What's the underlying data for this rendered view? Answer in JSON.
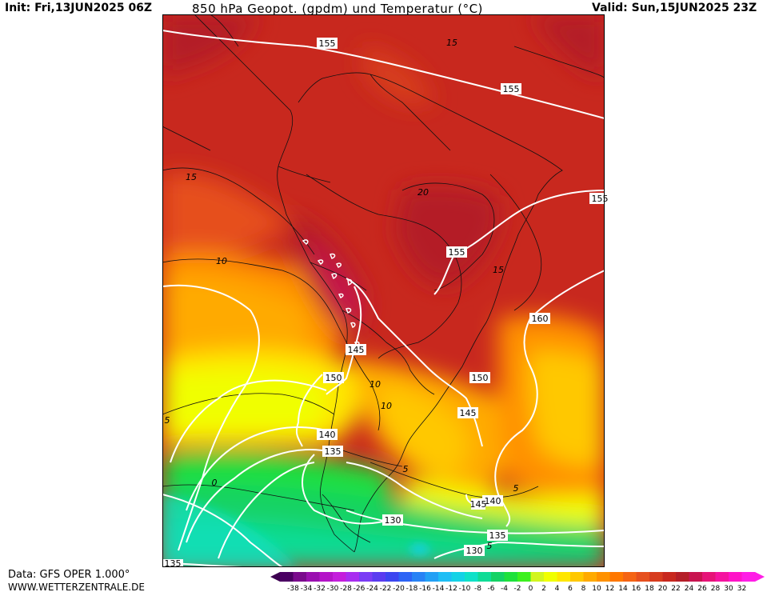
{
  "header": {
    "init": "Init: Fri,13JUN2025 06Z",
    "title": "850 hPa Geopot. (gpdm) und Temperatur (°C)",
    "valid": "Valid: Sun,15JUN2025 23Z"
  },
  "footer": {
    "data_source": "Data: GFS OPER 1.000°",
    "website": "WWW.WETTERZENTRALE.DE"
  },
  "geopotential_labels": [
    "155",
    "155",
    "155",
    "155",
    "160",
    "145",
    "150",
    "150",
    "145",
    "140",
    "135",
    "130",
    "135",
    "130",
    "140",
    "145",
    "135"
  ],
  "temperature_labels": [
    "15",
    "15",
    "15",
    "20",
    "10",
    "10",
    "10",
    "5",
    "5",
    "5",
    "0",
    "5"
  ],
  "legend": {
    "values": [
      "-38",
      "-34",
      "-32",
      "-30",
      "-28",
      "-26",
      "-24",
      "-22",
      "-20",
      "-18",
      "-16",
      "-14",
      "-12",
      "-10",
      "-8",
      "-6",
      "-4",
      "-2",
      "0",
      "2",
      "4",
      "6",
      "8",
      "10",
      "12",
      "14",
      "16",
      "18",
      "20",
      "22",
      "24",
      "26",
      "28",
      "30",
      "32"
    ],
    "colors": [
      "#4b0063",
      "#7a0a8c",
      "#9a0fb0",
      "#b414c8",
      "#c41edc",
      "#a82ef0",
      "#7a3cf5",
      "#5a3cf0",
      "#3c46f0",
      "#2d64f5",
      "#2882f5",
      "#23a0f5",
      "#1ebef5",
      "#14d2e6",
      "#0fe1c8",
      "#0fdc96",
      "#14d264",
      "#1ee13c",
      "#3cf01e",
      "#d2f51e",
      "#f0ff00",
      "#ffe600",
      "#ffc800",
      "#ffaa00",
      "#ff9100",
      "#ff7800",
      "#f56414",
      "#e6501e",
      "#d73c1e",
      "#c8281e",
      "#b41e28",
      "#c81450",
      "#e61478",
      "#f514a0",
      "#ff14c8",
      "#ff1ee6"
    ]
  }
}
